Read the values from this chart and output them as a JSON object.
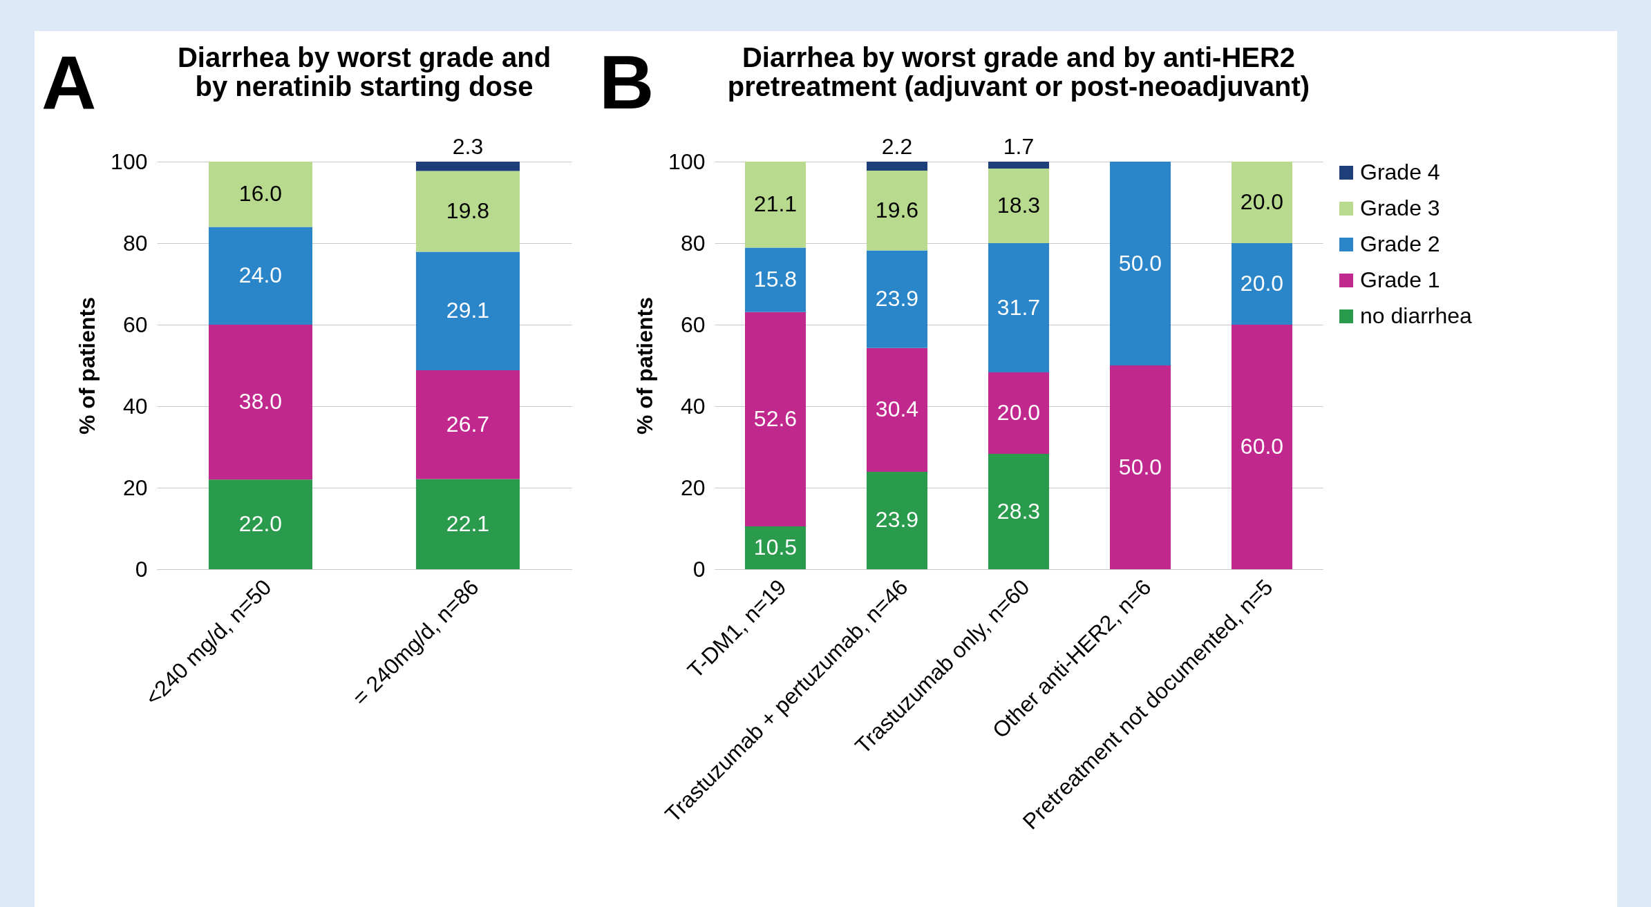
{
  "chart_data": [
    {
      "type": "bar",
      "title": "Diarrhea by worst grade and by neratinib starting dose",
      "annotations": [
        "A"
      ],
      "ylabel": "% of patients",
      "categories": [
        "<240 mg/d, n=50",
        "= 240mg/d, n=86"
      ],
      "stacked": true,
      "ylim": [
        0,
        100
      ],
      "yticks": [
        0,
        20,
        40,
        60,
        80,
        100
      ],
      "grid": "y",
      "legend": false,
      "series": [
        {
          "color": "#2a9a4c",
          "values": [
            22.0,
            22.1
          ],
          "value_labels": [
            "22.0",
            "22.1"
          ]
        },
        {
          "color": "#c0288e",
          "values": [
            38.0,
            26.7
          ],
          "value_labels": [
            "38.0",
            "26.7"
          ]
        },
        {
          "color": "#2a86c9",
          "values": [
            24.0,
            29.1
          ],
          "value_labels": [
            "24.0",
            "29.1"
          ]
        },
        {
          "color": "#b8da8e",
          "values": [
            16.0,
            19.8
          ],
          "value_labels": [
            "16.0",
            "19.8"
          ]
        },
        {
          "color": "#1d3e78",
          "values": [
            null,
            2.3
          ],
          "value_labels": [
            null,
            "2.3"
          ]
        }
      ]
    },
    {
      "type": "bar",
      "title": "Diarrhea by worst grade and by anti-HER2 pretreatment (adjuvant or post-neoadjuvant)",
      "annotations": [
        "B"
      ],
      "ylabel": "% of patients",
      "categories": [
        "T-DM1, n=19",
        "Trastuzumab + pertuzumab, n=46",
        "Trastuzumab only, n=60",
        "Other anti-HER2, n=6",
        "Pretreatment not documented, n=5"
      ],
      "stacked": true,
      "ylim": [
        0,
        100
      ],
      "yticks": [
        0,
        20,
        40,
        60,
        80,
        100
      ],
      "grid": "y",
      "legend": "right",
      "series": [
        {
          "name": "no diarrhea",
          "color": "#2a9a4c",
          "values": [
            10.5,
            23.9,
            28.3,
            null,
            null
          ],
          "value_labels": [
            "10.5",
            "23.9",
            "28.3",
            null,
            null
          ]
        },
        {
          "name": "Grade 1",
          "color": "#c0288e",
          "values": [
            52.6,
            30.4,
            20.0,
            50.0,
            60.0
          ],
          "value_labels": [
            "52.6",
            "30.4",
            "20.0",
            "50.0",
            "60.0"
          ]
        },
        {
          "name": "Grade 2",
          "color": "#2a86c9",
          "values": [
            15.8,
            23.9,
            31.7,
            50.0,
            20.0
          ],
          "value_labels": [
            "15.8",
            "23.9",
            "31.7",
            "50.0",
            "20.0"
          ]
        },
        {
          "name": "Grade 3",
          "color": "#b8da8e",
          "values": [
            21.1,
            19.6,
            18.3,
            null,
            20.0
          ],
          "value_labels": [
            "21.1",
            "19.6",
            "18.3",
            null,
            "20.0"
          ]
        },
        {
          "name": "Grade 4",
          "color": "#1d3e78",
          "values": [
            null,
            2.2,
            1.7,
            null,
            null
          ],
          "value_labels": [
            null,
            "2.2",
            "1.7",
            null,
            null
          ]
        }
      ]
    }
  ]
}
